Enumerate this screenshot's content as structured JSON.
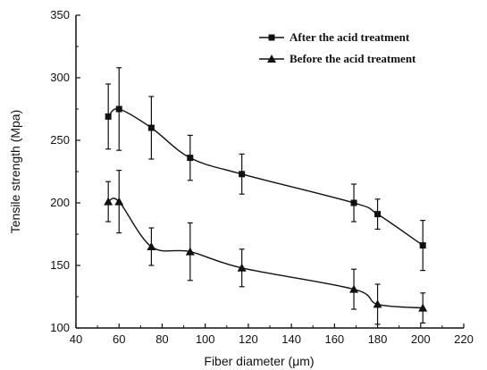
{
  "chart_data": {
    "type": "line",
    "xlabel": "Fiber diameter (μm)",
    "ylabel": "Tensile strength (Mpa)",
    "xlim": [
      40,
      220
    ],
    "ylim": [
      100,
      350
    ],
    "xticks": [
      40,
      60,
      80,
      100,
      120,
      140,
      160,
      180,
      200,
      220
    ],
    "yticks": [
      100,
      150,
      200,
      250,
      300,
      350
    ],
    "grid": false,
    "legend_position": "top-right",
    "series": [
      {
        "name": "After the acid treatment",
        "marker": "square",
        "x": [
          55,
          60,
          75,
          93,
          117,
          169,
          180,
          201
        ],
        "y": [
          269,
          275,
          260,
          236,
          223,
          200,
          191,
          166
        ],
        "err": [
          26,
          33,
          25,
          18,
          16,
          15,
          12,
          20
        ]
      },
      {
        "name": "Before the acid treatment",
        "marker": "triangle",
        "x": [
          55,
          60,
          75,
          93,
          117,
          169,
          180,
          201
        ],
        "y": [
          201,
          201,
          165,
          161,
          148,
          131,
          119,
          116
        ],
        "err": [
          16,
          25,
          15,
          23,
          15,
          16,
          16,
          12
        ]
      }
    ]
  }
}
